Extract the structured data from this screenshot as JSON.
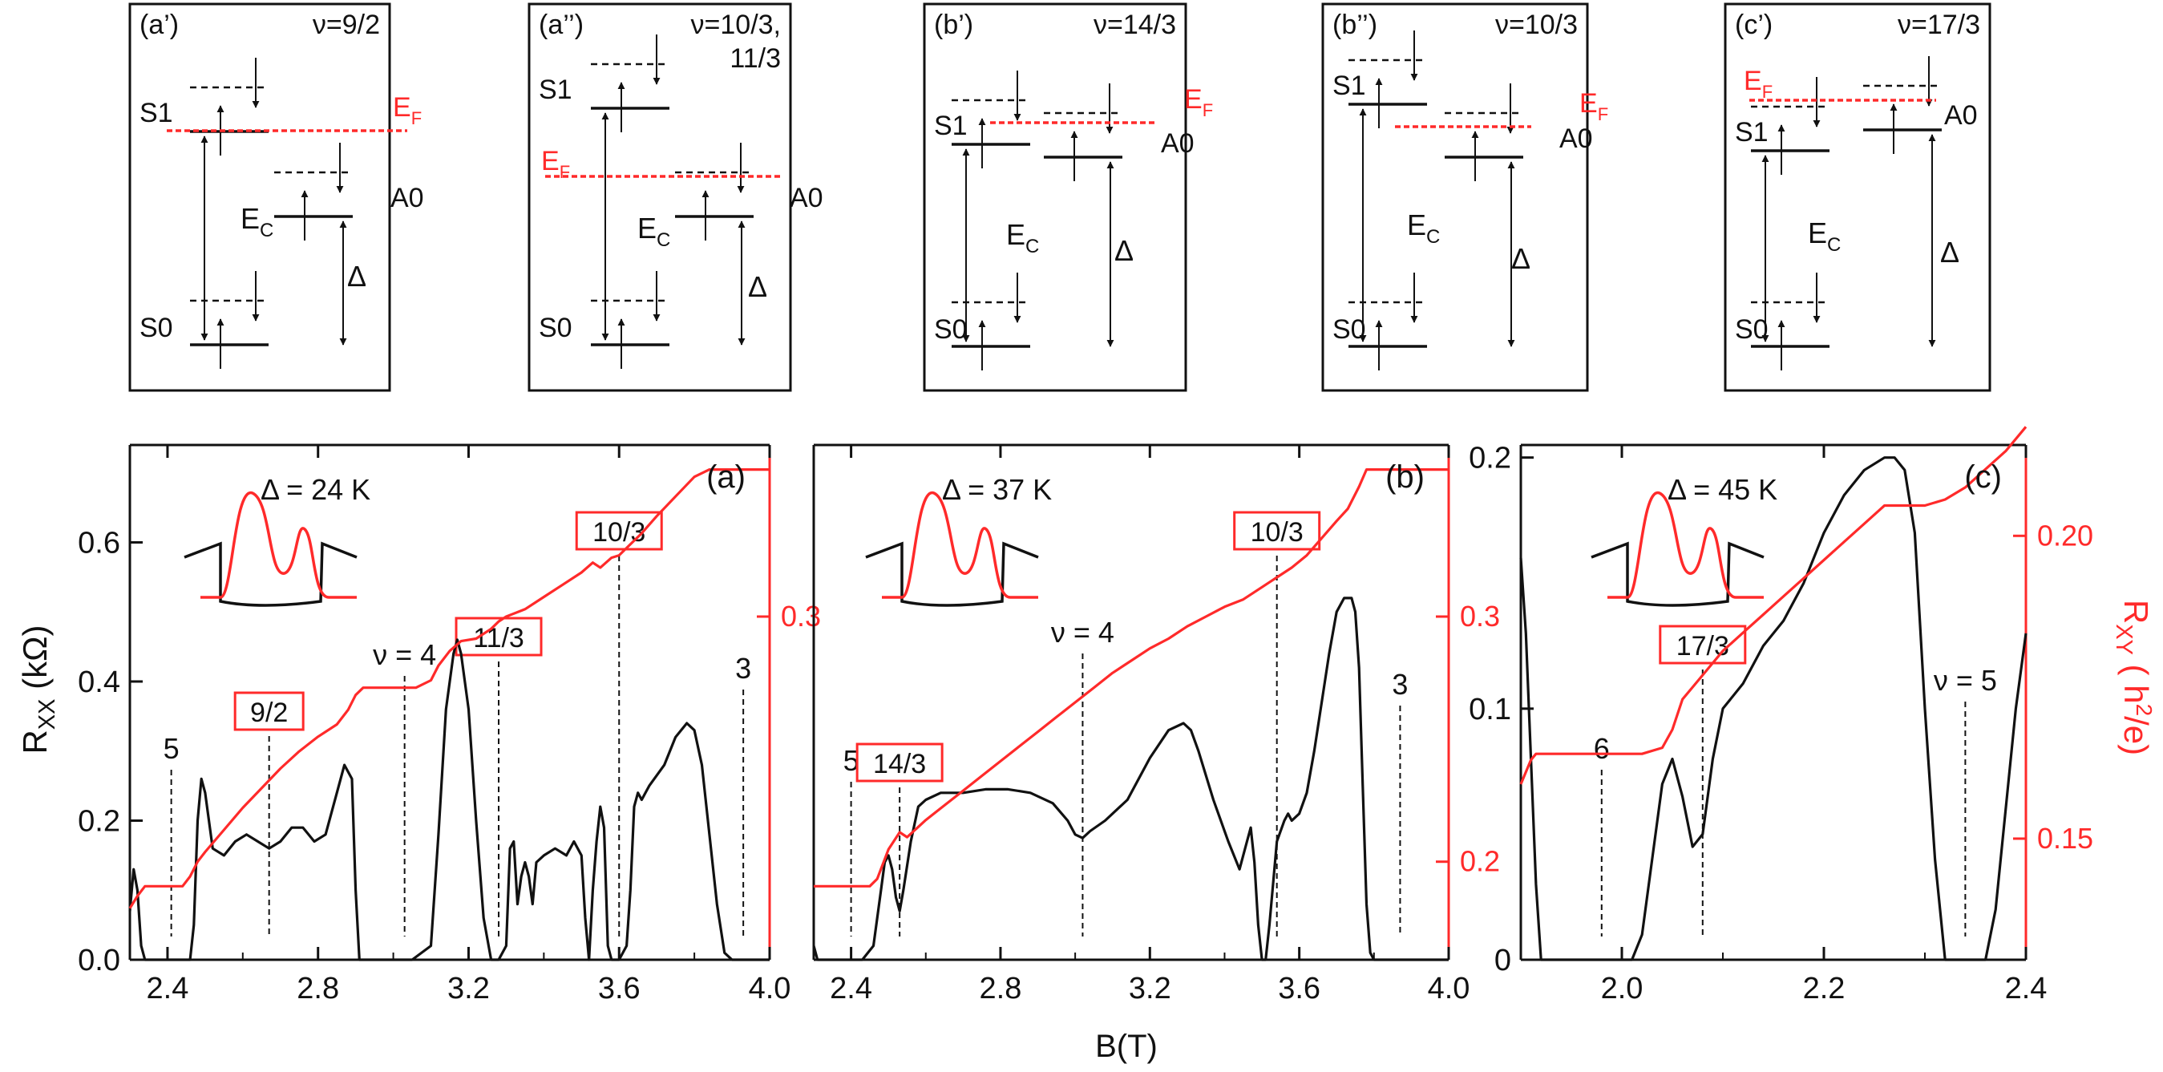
{
  "colors": {
    "black": "#111111",
    "red": "#ff2a2a"
  },
  "schematics": [
    {
      "tag": "(a’)",
      "nu": [
        "ν=9/2"
      ]
    },
    {
      "tag": "(a’’)",
      "nu": [
        "ν=10/3,",
        "11/3"
      ]
    },
    {
      "tag": "(b’)",
      "nu": [
        "ν=14/3"
      ]
    },
    {
      "tag": "(b’’)",
      "nu": [
        "ν=10/3"
      ]
    },
    {
      "tag": "(c’)",
      "nu": [
        "ν=17/3"
      ]
    }
  ],
  "schematic_labels": {
    "S1": "S1",
    "S0": "S0",
    "A0": "A0",
    "E": "E",
    "C": "C",
    "F": "F",
    "delta": "Δ"
  },
  "chart_data": [
    {
      "type": "line",
      "panel": "(a)",
      "delta_label": "Δ = 24 K",
      "xlabel": "B(T)",
      "ylabel_left": "RXX (kΩ)",
      "xlim": [
        2.3,
        4.0
      ],
      "ylim_left": [
        0,
        0.74
      ],
      "ylim_right": [
        0.16,
        0.37
      ],
      "x_ticks": [
        "2.4",
        "2.8",
        "3.2",
        "3.6",
        "4.0"
      ],
      "y_ticks_left": [
        "0.0",
        "0.2",
        "0.4",
        "0.6"
      ],
      "y_ticks_right": [
        "0.3"
      ],
      "fill_labels": [
        {
          "text": "5",
          "x": 2.41,
          "boxed": false
        },
        {
          "text": "9/2",
          "x": 2.67,
          "boxed": true
        },
        {
          "text": "ν = 4",
          "x": 3.03,
          "boxed": false
        },
        {
          "text": "11/3",
          "x": 3.28,
          "boxed": true
        },
        {
          "text": "10/3",
          "x": 3.6,
          "boxed": true
        },
        {
          "text": "3",
          "x": 3.93,
          "boxed": false
        }
      ],
      "series": [
        {
          "axis": "left",
          "x": [
            2.3,
            2.31,
            2.32,
            2.33,
            2.34,
            2.36,
            2.4,
            2.44,
            2.46,
            2.47,
            2.48,
            2.49,
            2.5,
            2.52,
            2.55,
            2.58,
            2.61,
            2.64,
            2.67,
            2.7,
            2.73,
            2.76,
            2.79,
            2.82,
            2.85,
            2.87,
            2.89,
            2.9,
            2.91,
            2.93,
            2.95,
            2.98,
            3.05,
            3.1,
            3.12,
            3.14,
            3.16,
            3.17,
            3.18,
            3.2,
            3.22,
            3.24,
            3.26,
            3.28,
            3.3,
            3.31,
            3.32,
            3.33,
            3.34,
            3.35,
            3.36,
            3.37,
            3.38,
            3.4,
            3.43,
            3.46,
            3.48,
            3.5,
            3.51,
            3.52,
            3.53,
            3.54,
            3.55,
            3.56,
            3.57,
            3.58,
            3.6,
            3.62,
            3.63,
            3.64,
            3.65,
            3.66,
            3.67,
            3.68,
            3.72,
            3.75,
            3.78,
            3.8,
            3.82,
            3.84,
            3.86,
            3.88,
            3.9,
            3.95,
            4.0
          ],
          "y": [
            0.07,
            0.13,
            0.1,
            0.02,
            0.0,
            0.0,
            0.0,
            0.0,
            0.0,
            0.05,
            0.2,
            0.26,
            0.24,
            0.16,
            0.15,
            0.17,
            0.18,
            0.17,
            0.16,
            0.17,
            0.19,
            0.19,
            0.17,
            0.18,
            0.24,
            0.28,
            0.26,
            0.1,
            0.0,
            0.0,
            0.0,
            0.0,
            0.0,
            0.02,
            0.18,
            0.36,
            0.44,
            0.46,
            0.44,
            0.36,
            0.2,
            0.06,
            0.0,
            0.0,
            0.02,
            0.16,
            0.17,
            0.08,
            0.12,
            0.14,
            0.12,
            0.08,
            0.14,
            0.15,
            0.16,
            0.15,
            0.17,
            0.15,
            0.06,
            0.0,
            0.1,
            0.17,
            0.22,
            0.19,
            0.02,
            0.0,
            0.0,
            0.02,
            0.1,
            0.22,
            0.24,
            0.23,
            0.24,
            0.25,
            0.28,
            0.32,
            0.34,
            0.33,
            0.28,
            0.18,
            0.08,
            0.01,
            0.0,
            0.0,
            0.0
          ]
        },
        {
          "axis": "right",
          "x": [
            2.3,
            2.32,
            2.34,
            2.36,
            2.4,
            2.44,
            2.46,
            2.48,
            2.5,
            2.55,
            2.6,
            2.65,
            2.7,
            2.75,
            2.8,
            2.85,
            2.88,
            2.9,
            2.92,
            2.94,
            2.97,
            3.02,
            3.06,
            3.1,
            3.12,
            3.15,
            3.18,
            3.22,
            3.26,
            3.28,
            3.3,
            3.35,
            3.4,
            3.45,
            3.5,
            3.53,
            3.55,
            3.58,
            3.6,
            3.62,
            3.66,
            3.7,
            3.75,
            3.8,
            3.84,
            3.87,
            3.9,
            3.95,
            4.0
          ],
          "y": [
            0.181,
            0.186,
            0.19,
            0.19,
            0.19,
            0.19,
            0.194,
            0.2,
            0.204,
            0.213,
            0.222,
            0.23,
            0.238,
            0.245,
            0.251,
            0.256,
            0.262,
            0.268,
            0.271,
            0.271,
            0.271,
            0.271,
            0.271,
            0.274,
            0.28,
            0.286,
            0.29,
            0.291,
            0.295,
            0.298,
            0.3,
            0.303,
            0.308,
            0.313,
            0.318,
            0.322,
            0.32,
            0.324,
            0.325,
            0.328,
            0.334,
            0.341,
            0.349,
            0.357,
            0.36,
            0.36,
            0.36,
            0.36,
            0.36
          ]
        }
      ]
    },
    {
      "type": "line",
      "panel": "(b)",
      "delta_label": "Δ = 37 K",
      "xlabel": "B(T)",
      "xlim": [
        2.3,
        4.0
      ],
      "ylim_left": [
        0,
        0.74
      ],
      "ylim_right": [
        0.16,
        0.37
      ],
      "x_ticks": [
        "2.4",
        "2.8",
        "3.2",
        "3.6",
        "4.0"
      ],
      "y_ticks_right": [
        "0.2",
        "0.3"
      ],
      "fill_labels": [
        {
          "text": "5",
          "x": 2.4,
          "boxed": false
        },
        {
          "text": "14/3",
          "x": 2.53,
          "boxed": true
        },
        {
          "text": "ν = 4",
          "x": 3.02,
          "boxed": false
        },
        {
          "text": "10/3",
          "x": 3.54,
          "boxed": true
        },
        {
          "text": "3",
          "x": 3.87,
          "boxed": false
        }
      ],
      "series": [
        {
          "axis": "left",
          "x": [
            2.3,
            2.31,
            2.33,
            2.38,
            2.43,
            2.46,
            2.48,
            2.49,
            2.5,
            2.51,
            2.52,
            2.53,
            2.54,
            2.56,
            2.58,
            2.6,
            2.64,
            2.7,
            2.76,
            2.82,
            2.88,
            2.94,
            2.98,
            3.0,
            3.02,
            3.04,
            3.08,
            3.14,
            3.2,
            3.25,
            3.29,
            3.31,
            3.33,
            3.37,
            3.41,
            3.44,
            3.46,
            3.47,
            3.48,
            3.49,
            3.5,
            3.51,
            3.52,
            3.54,
            3.56,
            3.57,
            3.58,
            3.6,
            3.62,
            3.64,
            3.66,
            3.68,
            3.7,
            3.72,
            3.74,
            3.75,
            3.76,
            3.77,
            3.78,
            3.79,
            3.8,
            3.85,
            3.9,
            4.0
          ],
          "y": [
            0.02,
            0.0,
            0.0,
            0.0,
            0.0,
            0.02,
            0.1,
            0.14,
            0.15,
            0.13,
            0.09,
            0.07,
            0.1,
            0.17,
            0.22,
            0.23,
            0.24,
            0.24,
            0.245,
            0.245,
            0.24,
            0.225,
            0.2,
            0.18,
            0.175,
            0.185,
            0.2,
            0.23,
            0.29,
            0.33,
            0.34,
            0.33,
            0.3,
            0.23,
            0.17,
            0.13,
            0.17,
            0.19,
            0.14,
            0.05,
            0.0,
            0.0,
            0.05,
            0.17,
            0.2,
            0.21,
            0.2,
            0.21,
            0.24,
            0.3,
            0.37,
            0.44,
            0.5,
            0.52,
            0.52,
            0.5,
            0.42,
            0.25,
            0.08,
            0.01,
            0.0,
            0.0,
            0.0,
            0.0
          ]
        },
        {
          "axis": "right",
          "x": [
            2.3,
            2.35,
            2.4,
            2.45,
            2.47,
            2.5,
            2.53,
            2.55,
            2.6,
            2.65,
            2.7,
            2.75,
            2.8,
            2.85,
            2.9,
            2.95,
            3.0,
            3.05,
            3.1,
            3.15,
            3.2,
            3.25,
            3.3,
            3.35,
            3.4,
            3.45,
            3.5,
            3.52,
            3.55,
            3.58,
            3.62,
            3.66,
            3.7,
            3.73,
            3.76,
            3.78,
            3.8,
            3.85,
            3.9,
            3.95,
            4.0
          ],
          "y": [
            0.19,
            0.19,
            0.19,
            0.19,
            0.193,
            0.205,
            0.212,
            0.21,
            0.217,
            0.223,
            0.229,
            0.235,
            0.241,
            0.247,
            0.253,
            0.259,
            0.265,
            0.271,
            0.277,
            0.282,
            0.287,
            0.291,
            0.296,
            0.3,
            0.304,
            0.307,
            0.312,
            0.314,
            0.317,
            0.32,
            0.325,
            0.332,
            0.339,
            0.344,
            0.353,
            0.36,
            0.36,
            0.36,
            0.36,
            0.36,
            0.36
          ]
        }
      ]
    },
    {
      "type": "line",
      "panel": "(c)",
      "delta_label": "Δ = 45 K",
      "xlabel": "B(T)",
      "ylabel_right": "RXY ( h2/e)",
      "xlim": [
        1.9,
        2.4
      ],
      "ylim_left": [
        0,
        0.205
      ],
      "ylim_right": [
        0.13,
        0.215
      ],
      "x_ticks": [
        "2.0",
        "2.2",
        "2.4"
      ],
      "y_ticks_left": [
        "0",
        "0.1",
        "0.2"
      ],
      "y_ticks_right": [
        "0.15",
        "0.20"
      ],
      "fill_labels": [
        {
          "text": "6",
          "x": 1.98,
          "boxed": false
        },
        {
          "text": "17/3",
          "x": 2.08,
          "boxed": true
        },
        {
          "text": "ν = 5",
          "x": 2.34,
          "boxed": false
        }
      ],
      "series": [
        {
          "axis": "left",
          "x": [
            1.9,
            1.905,
            1.91,
            1.915,
            1.92,
            1.93,
            1.96,
            1.99,
            2.0,
            2.01,
            2.02,
            2.03,
            2.04,
            2.05,
            2.06,
            2.07,
            2.08,
            2.09,
            2.1,
            2.12,
            2.14,
            2.16,
            2.18,
            2.2,
            2.22,
            2.24,
            2.26,
            2.27,
            2.28,
            2.29,
            2.3,
            2.31,
            2.32,
            2.34,
            2.36,
            2.37,
            2.38,
            2.39,
            2.4
          ],
          "y": [
            0.16,
            0.13,
            0.08,
            0.03,
            0.0,
            0.0,
            0.0,
            0.0,
            0.0,
            0.0,
            0.01,
            0.04,
            0.07,
            0.08,
            0.065,
            0.045,
            0.05,
            0.08,
            0.1,
            0.11,
            0.125,
            0.135,
            0.15,
            0.17,
            0.185,
            0.195,
            0.2,
            0.2,
            0.195,
            0.17,
            0.1,
            0.04,
            0.0,
            0.0,
            0.0,
            0.02,
            0.06,
            0.1,
            0.13
          ]
        },
        {
          "axis": "right",
          "x": [
            1.9,
            1.905,
            1.91,
            1.915,
            1.92,
            1.94,
            1.96,
            1.98,
            2.0,
            2.02,
            2.04,
            2.05,
            2.06,
            2.07,
            2.08,
            2.09,
            2.1,
            2.12,
            2.14,
            2.16,
            2.18,
            2.2,
            2.22,
            2.24,
            2.26,
            2.28,
            2.3,
            2.32,
            2.34,
            2.36,
            2.38,
            2.4
          ],
          "y": [
            0.159,
            0.161,
            0.163,
            0.164,
            0.164,
            0.164,
            0.164,
            0.164,
            0.164,
            0.164,
            0.165,
            0.168,
            0.173,
            0.175,
            0.177,
            0.179,
            0.181,
            0.184,
            0.187,
            0.19,
            0.193,
            0.196,
            0.199,
            0.202,
            0.205,
            0.205,
            0.205,
            0.206,
            0.208,
            0.211,
            0.214,
            0.218
          ]
        }
      ]
    }
  ]
}
